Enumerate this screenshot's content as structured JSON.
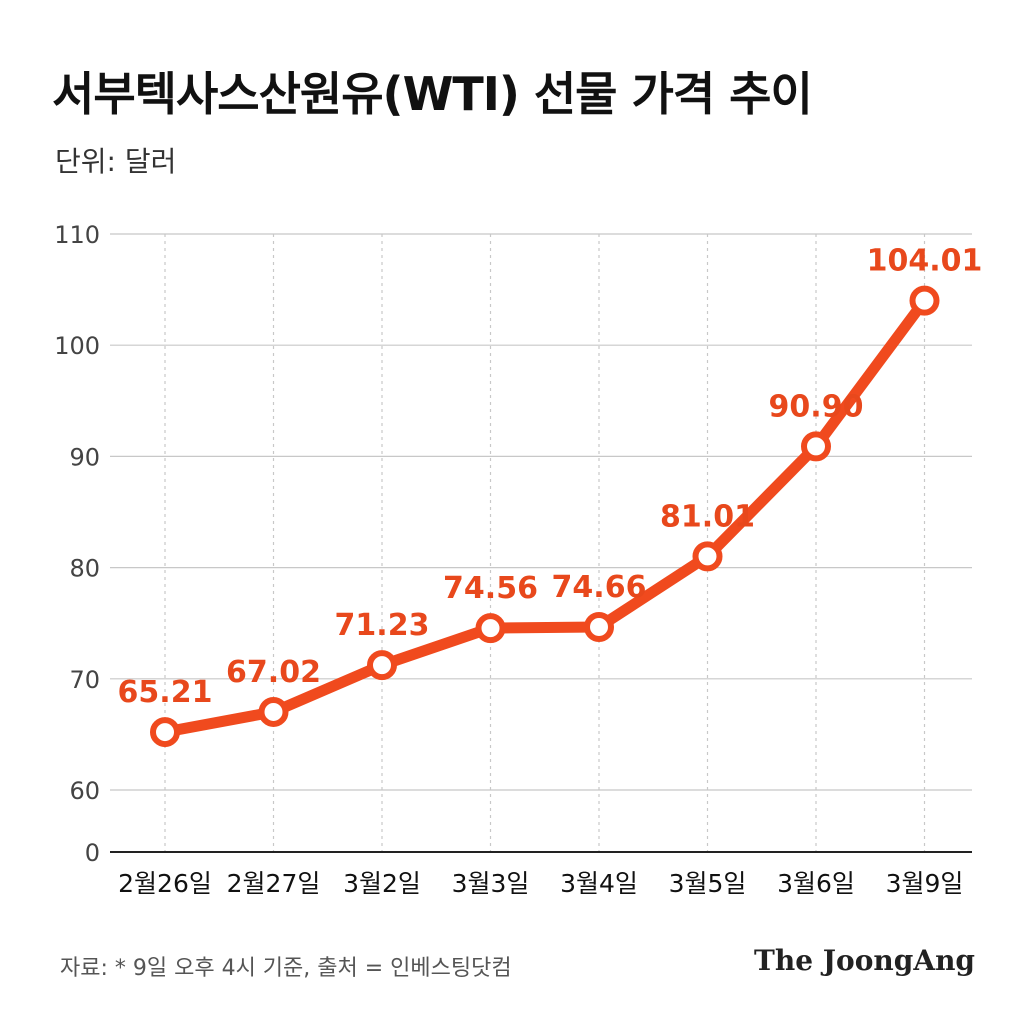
{
  "header": {
    "title": "서부텍사스산원유(WTI) 선물 가격 추이",
    "unit": "단위: 달러"
  },
  "footer": {
    "source": "자료: * 9일 오후 4시 기준, 출처 = 인베스팅닷컴",
    "brand": "The JoongAng"
  },
  "colors": {
    "line": "#f04a1e",
    "label": "#e8481c",
    "grid": "#c8c8c8",
    "axis": "#222222",
    "tick": "#444444"
  },
  "chart_data": {
    "type": "line",
    "title": "서부텍사스산원유(WTI) 선물 가격 추이",
    "xlabel": "",
    "ylabel": "단위: 달러",
    "categories": [
      "2월26일",
      "2월27일",
      "3월2일",
      "3월3일",
      "3월4일",
      "3월5일",
      "3월6일",
      "3월9일"
    ],
    "series": [
      {
        "values": [
          65.21,
          67.02,
          71.23,
          74.56,
          74.66,
          81.01,
          90.9,
          104.01
        ],
        "labels": [
          "65.21",
          "67.02",
          "71.23",
          "74.56",
          "74.66",
          "81.01",
          "90.90",
          "104.01"
        ]
      }
    ],
    "y_ticks": [
      0,
      60,
      70,
      80,
      90,
      100,
      110
    ],
    "y_axis_break": "0 then 60",
    "ylim": [
      60,
      110
    ],
    "grid": true,
    "legend": "none"
  }
}
